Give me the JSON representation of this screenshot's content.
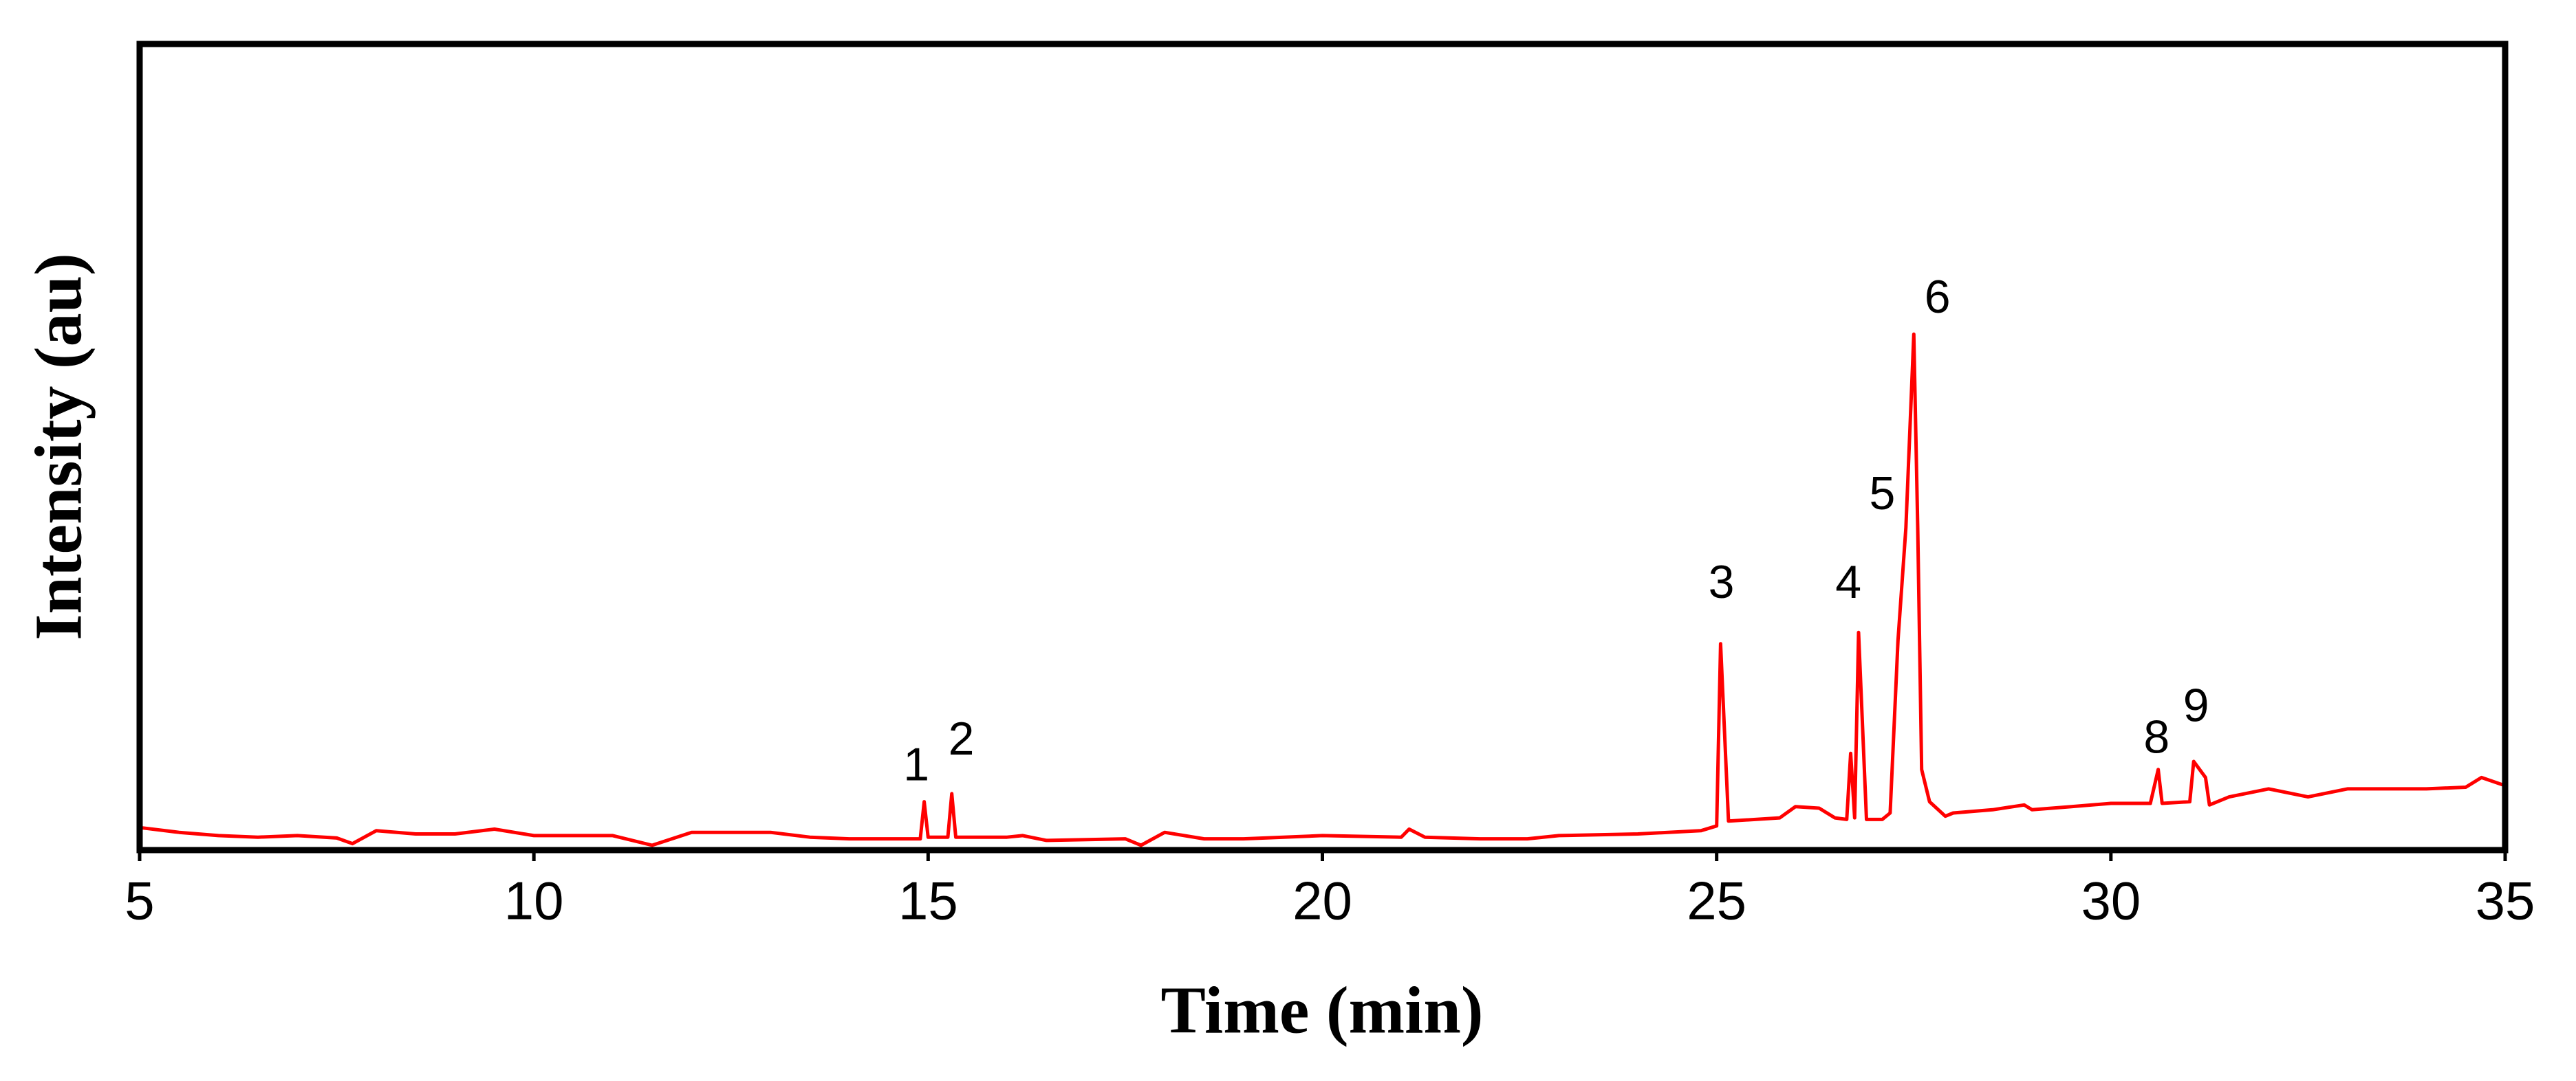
{
  "chart_data": {
    "type": "line",
    "xlabel": "Time (min)",
    "ylabel": "Intensity (au)",
    "color": "#ff0000",
    "xlim": [
      5,
      35
    ],
    "ylim": [
      0,
      100
    ],
    "xticks": [
      5,
      10,
      15,
      20,
      25,
      30,
      35
    ],
    "x": [
      5.0,
      5.5,
      6.0,
      6.5,
      7.0,
      7.5,
      7.7,
      8.0,
      8.5,
      9.0,
      9.5,
      10.0,
      11.0,
      11.5,
      12.0,
      13.0,
      13.5,
      14.0,
      14.9,
      14.95,
      15.0,
      15.25,
      15.3,
      15.35,
      16.0,
      16.2,
      16.5,
      17.5,
      17.7,
      18.0,
      18.5,
      19.0,
      20.0,
      21.0,
      21.1,
      21.3,
      22.0,
      22.6,
      23.0,
      24.0,
      24.8,
      25.0,
      25.05,
      25.15,
      25.8,
      26.0,
      26.3,
      26.5,
      26.65,
      26.7,
      26.75,
      26.8,
      26.9,
      27.1,
      27.2,
      27.3,
      27.4,
      27.5,
      27.55,
      27.6,
      27.7,
      27.9,
      28.0,
      28.5,
      28.9,
      29.0,
      29.5,
      30.0,
      30.5,
      30.6,
      30.65,
      31.0,
      31.05,
      31.2,
      31.25,
      31.5,
      32.0,
      32.5,
      33.0,
      34.0,
      34.5,
      34.7,
      35.0
    ],
    "values": [
      2.8,
      2.2,
      1.8,
      1.6,
      1.8,
      1.5,
      0.8,
      2.4,
      2.0,
      2.0,
      2.6,
      1.8,
      1.8,
      0.6,
      2.2,
      2.2,
      1.6,
      1.4,
      1.4,
      6.0,
      1.6,
      1.6,
      7.0,
      1.6,
      1.6,
      1.8,
      1.2,
      1.4,
      0.6,
      2.2,
      1.4,
      1.4,
      1.8,
      1.6,
      2.6,
      1.6,
      1.4,
      1.4,
      1.8,
      2.0,
      2.4,
      3.0,
      25.6,
      3.6,
      4.0,
      5.4,
      5.2,
      4.0,
      3.8,
      12,
      4.0,
      27,
      3.8,
      3.8,
      4.6,
      26,
      40,
      64,
      40,
      10,
      6,
      4.2,
      4.6,
      5.0,
      5.6,
      5.0,
      5.4,
      5.8,
      5.8,
      10,
      5.8,
      6.0,
      11,
      9,
      5.6,
      6.6,
      7.6,
      6.6,
      7.6,
      7.6,
      7.8,
      9.0,
      8.0
    ],
    "annotations": [
      {
        "text": "1",
        "x": 14.85,
        "y": 10.2
      },
      {
        "text": "2",
        "x": 15.42,
        "y": 13.4
      },
      {
        "text": "3",
        "x": 25.06,
        "y": 32.8
      },
      {
        "text": "4",
        "x": 26.67,
        "y": 32.8
      },
      {
        "text": "5",
        "x": 27.1,
        "y": 43.8
      },
      {
        "text": "6",
        "x": 27.8,
        "y": 68.2
      },
      {
        "text": "8",
        "x": 30.58,
        "y": 13.6
      },
      {
        "text": "9",
        "x": 31.08,
        "y": 17.5
      }
    ]
  }
}
